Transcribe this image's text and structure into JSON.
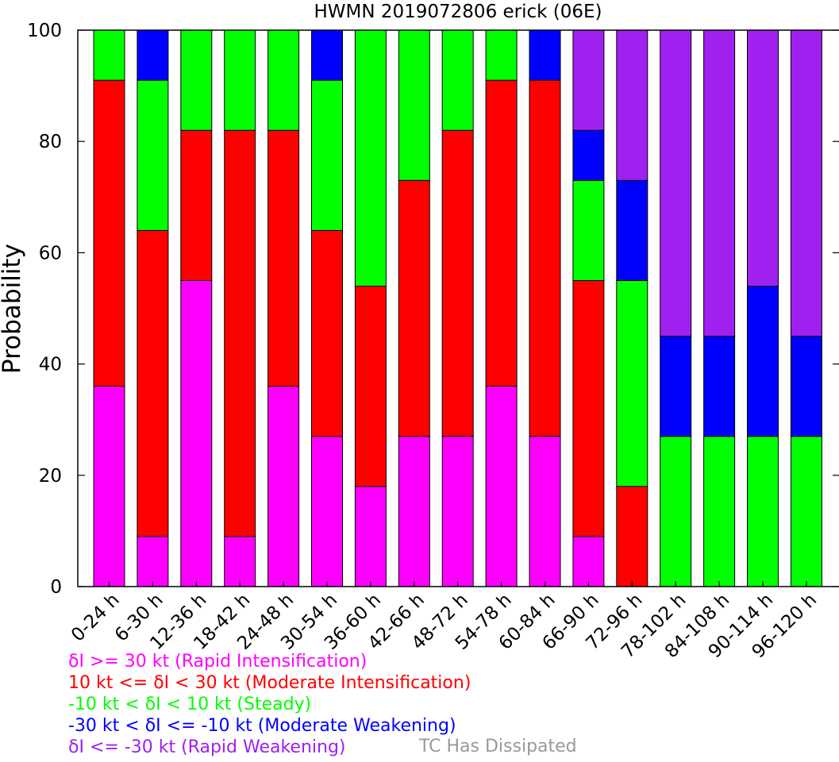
{
  "chart_data": {
    "type": "bar",
    "stacked": true,
    "title": "HWMN 2019072806 erick (06E)",
    "ylabel": "Probability",
    "xlabel": "",
    "ylim": [
      0,
      100
    ],
    "yticks": [
      0,
      20,
      40,
      60,
      80,
      100
    ],
    "grid": false,
    "categories": [
      "0-24 h",
      "6-30 h",
      "12-36 h",
      "18-42 h",
      "24-48 h",
      "30-54 h",
      "36-60 h",
      "42-66 h",
      "48-72 h",
      "54-78 h",
      "60-84 h",
      "66-90 h",
      "72-96 h",
      "78-102 h",
      "84-108 h",
      "90-114 h",
      "96-120 h"
    ],
    "series": [
      {
        "name": "δI >= 30 kt (Rapid Intensification)",
        "color": "#ff00ff",
        "values": [
          36,
          9,
          55,
          9,
          36,
          27,
          18,
          27,
          27,
          36,
          27,
          9,
          0,
          0,
          0,
          0,
          0
        ]
      },
      {
        "name": "10 kt <= δI < 30 kt (Moderate Intensification)",
        "color": "#ff0000",
        "values": [
          55,
          55,
          27,
          73,
          46,
          37,
          36,
          46,
          55,
          55,
          64,
          46,
          18,
          0,
          0,
          0,
          0
        ]
      },
      {
        "name": "-10 kt < δI < 10 kt (Steady)",
        "color": "#00ff00",
        "values": [
          9,
          27,
          18,
          18,
          18,
          27,
          46,
          27,
          18,
          9,
          0,
          18,
          37,
          27,
          27,
          27,
          27
        ]
      },
      {
        "name": "-30 kt < δI <= -10 kt (Moderate Weakening)",
        "color": "#0000ff",
        "values": [
          0,
          9,
          0,
          0,
          0,
          9,
          0,
          0,
          0,
          0,
          9,
          9,
          18,
          18,
          18,
          27,
          18
        ]
      },
      {
        "name": "δI <= -30 kt (Rapid Weakening)",
        "color": "#a020f0",
        "values": [
          0,
          0,
          0,
          0,
          0,
          0,
          0,
          0,
          0,
          0,
          0,
          18,
          27,
          55,
          55,
          46,
          55
        ]
      }
    ],
    "extra_legend": {
      "label": "TC Has Dissipated",
      "color": "#999999"
    }
  }
}
